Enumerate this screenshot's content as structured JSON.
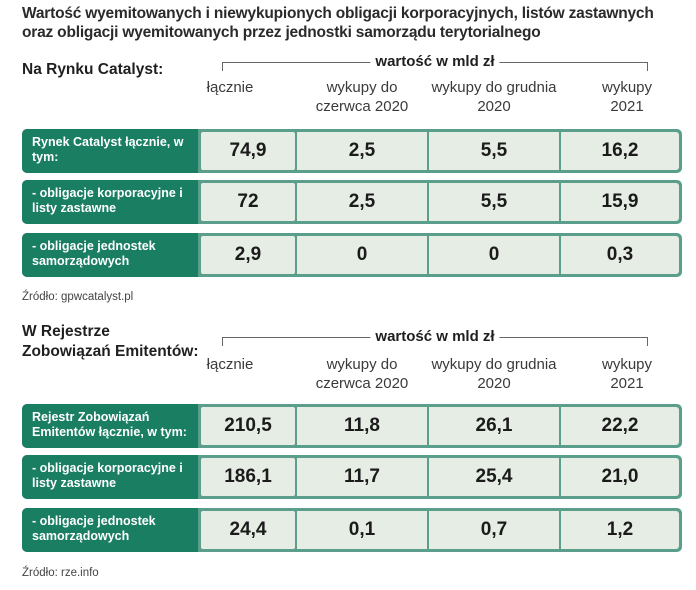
{
  "title": "Wartość wyemitowanych i niewykupionych obligacji korporacyjnych, listów zastawnych oraz obligacji wyemitowanych przez jednostki samorządu terytorialnego",
  "chart_data": [
    {
      "type": "table",
      "section_label": "Na Rynku Catalyst:",
      "unit": "wartość w mld zł",
      "columns": [
        "łącznie",
        "wykupy do czerwca 2020",
        "wykupy do grudnia 2020",
        "wykupy 2021"
      ],
      "rows": [
        {
          "label": "Rynek Catalyst łącznie, w tym:",
          "values": [
            "74,9",
            "2,5",
            "5,5",
            "16,2"
          ]
        },
        {
          "label": "- obligacje korporacyjne i listy zastawne",
          "values": [
            "72",
            "2,5",
            "5,5",
            "15,9"
          ]
        },
        {
          "label": "- obligacje jednostek samorządowych",
          "values": [
            "2,9",
            "0",
            "0",
            "0,3"
          ]
        }
      ],
      "source": "Źródło: gpwcatalyst.pl"
    },
    {
      "type": "table",
      "section_label": "W Rejestrze Zobowiązań Emitentów:",
      "unit": "wartość w mld zł",
      "columns": [
        "łącznie",
        "wykupy do czerwca 2020",
        "wykupy do grudnia 2020",
        "wykupy 2021"
      ],
      "rows": [
        {
          "label": "Rejestr Zobowiązań Emitentów łącznie, w tym:",
          "values": [
            "210,5",
            "11,8",
            "26,1",
            "22,2"
          ]
        },
        {
          "label": "- obligacje korporacyjne i listy zastawne",
          "values": [
            "186,1",
            "11,7",
            "25,4",
            "21,0"
          ]
        },
        {
          "label": "- obligacje jednostek samorządowych",
          "values": [
            "24,4",
            "0,1",
            "0,7",
            "1,2"
          ]
        }
      ],
      "source": "Źródło: rze.info"
    }
  ],
  "colors": {
    "label_bg": "#1a7e63",
    "row_bg": "#5b9e8c",
    "cell_bg": "#e6ede4"
  }
}
